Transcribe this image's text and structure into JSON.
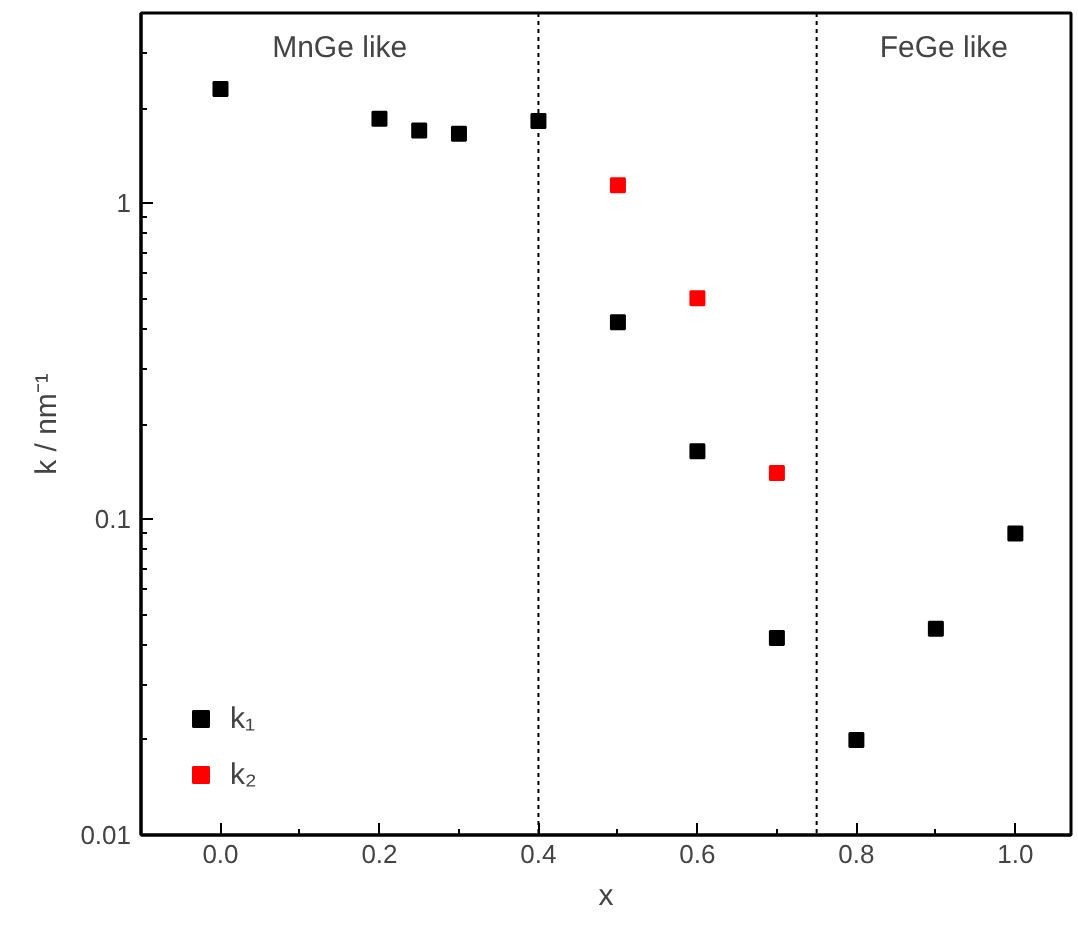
{
  "chart_data": {
    "type": "scatter",
    "xlabel": "x",
    "ylabel": "k / nm⁻¹",
    "log": "y",
    "marker": "square",
    "grid": false,
    "legend": "bottom left",
    "xlim": [
      -0.1,
      1.07
    ],
    "ylim": [
      0.01,
      4
    ],
    "xticks": [
      {
        "value": 0,
        "label": "0.0"
      },
      {
        "value": 0.1,
        "label": null
      },
      {
        "value": 0.2,
        "label": "0.2"
      },
      {
        "value": 0.3,
        "label": null
      },
      {
        "value": 0.4,
        "label": "0.4"
      },
      {
        "value": 0.5,
        "label": null
      },
      {
        "value": 0.6,
        "label": "0.6"
      },
      {
        "value": 0.7,
        "label": null
      },
      {
        "value": 0.8,
        "label": "0.8"
      },
      {
        "value": 0.9,
        "label": null
      },
      {
        "value": 1.0,
        "label": "1.0"
      }
    ],
    "yticks": [
      0.01,
      0.1,
      1
    ],
    "series": [
      {
        "name": "k₁",
        "color": "#000000",
        "x": [
          0,
          0.2,
          0.25,
          0.3,
          0.4,
          0.5,
          0.6,
          0.7,
          0.8,
          0.9,
          1.0
        ],
        "values": [
          2.3,
          1.85,
          1.7,
          1.66,
          1.82,
          0.42,
          0.164,
          0.042,
          0.02,
          0.045,
          0.09
        ]
      },
      {
        "name": "k₂",
        "color": "#ff0000",
        "x": [
          0.5,
          0.6,
          0.7
        ],
        "values": [
          1.14,
          0.5,
          0.14
        ]
      }
    ],
    "ref_lines": [
      {
        "axis": "x",
        "value": 0.4,
        "line_style": "dotted",
        "color": "#000000"
      },
      {
        "axis": "x",
        "value": 0.75,
        "line_style": "dotted",
        "color": "#000000"
      }
    ],
    "annotations": [
      "MnGe like",
      "FeGe like"
    ]
  }
}
